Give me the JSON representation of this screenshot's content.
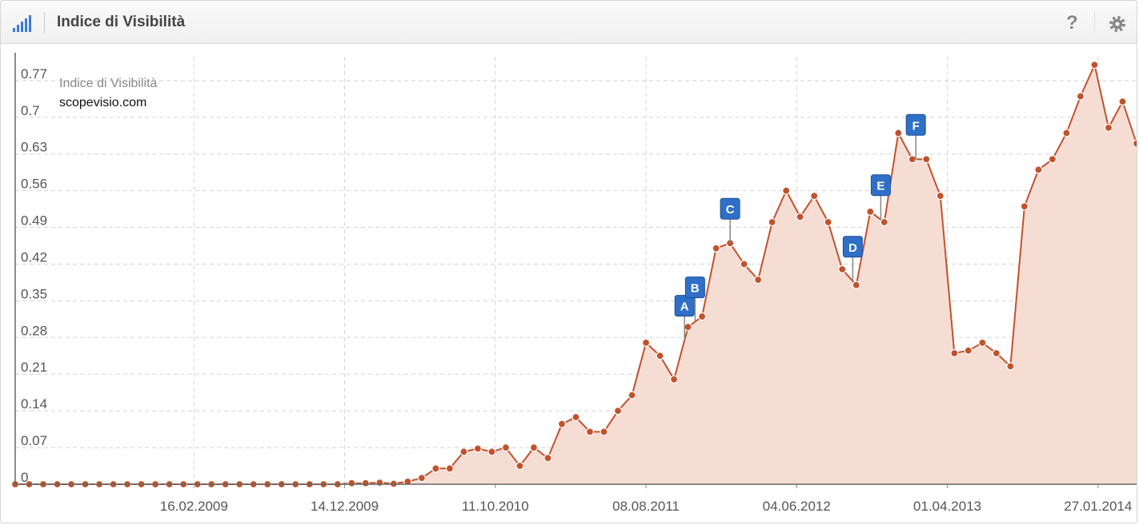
{
  "header": {
    "title": "Indice di Visibilità",
    "help": "?"
  },
  "chart_data": {
    "type": "area",
    "y_label": "Indice di Visibilità",
    "x": [
      "25.02.2008",
      "24.03.2008",
      "21.04.2008",
      "19.05.2008",
      "16.06.2008",
      "14.07.2008",
      "11.08.2008",
      "08.09.2008",
      "06.10.2008",
      "03.11.2008",
      "01.12.2008",
      "29.12.2008",
      "26.01.2009",
      "23.02.2009",
      "23.03.2009",
      "20.04.2009",
      "18.05.2009",
      "15.06.2009",
      "13.07.2009",
      "10.08.2009",
      "07.09.2009",
      "05.10.2009",
      "02.11.2009",
      "30.11.2009",
      "28.12.2009",
      "25.01.2010",
      "22.02.2010",
      "22.03.2010",
      "19.04.2010",
      "17.05.2010",
      "14.06.2010",
      "12.07.2010",
      "09.08.2010",
      "06.09.2010",
      "04.10.2010",
      "01.11.2010",
      "29.11.2010",
      "27.12.2010",
      "24.01.2011",
      "21.02.2011",
      "21.03.2011",
      "18.04.2011",
      "16.05.2011",
      "13.06.2011",
      "11.07.2011",
      "08.08.2011",
      "05.09.2011",
      "03.10.2011",
      "31.10.2011",
      "28.11.2011",
      "26.12.2011",
      "23.01.2012",
      "20.02.2012",
      "19.03.2012",
      "16.04.2012",
      "14.05.2012",
      "11.06.2012",
      "09.07.2012",
      "06.08.2012",
      "03.09.2012",
      "01.10.2012",
      "29.10.2012",
      "26.11.2012",
      "24.12.2012",
      "21.01.2013",
      "18.02.2013",
      "18.03.2013",
      "15.04.2013",
      "13.05.2013",
      "10.06.2013",
      "08.07.2013",
      "05.08.2013",
      "02.09.2013",
      "30.09.2013",
      "28.10.2013",
      "25.11.2013",
      "23.12.2013",
      "20.01.2014",
      "17.02.2014",
      "17.03.2014",
      "14.04.2014"
    ],
    "series": [
      {
        "name": "scopevisio.com",
        "color": "#c0532d",
        "fill": "#f5ddd4",
        "values": [
          0,
          0,
          0,
          0,
          0,
          0,
          0,
          0,
          0,
          0,
          0,
          0,
          0,
          0,
          0,
          0,
          0,
          0,
          0,
          0,
          0,
          0,
          0,
          0,
          0.002,
          0.002,
          0.003,
          0.001,
          0.005,
          0.012,
          0.03,
          0.03,
          0.062,
          0.068,
          0.062,
          0.07,
          0.035,
          0.07,
          0.05,
          0.115,
          0.128,
          0.1,
          0.1,
          0.14,
          0.17,
          0.27,
          0.245,
          0.2,
          0.3,
          0.32,
          0.45,
          0.46,
          0.42,
          0.39,
          0.5,
          0.56,
          0.51,
          0.55,
          0.5,
          0.41,
          0.38,
          0.52,
          0.5,
          0.67,
          0.62,
          0.62,
          0.55,
          0.25,
          0.255,
          0.27,
          0.25,
          0.225,
          0.53,
          0.6,
          0.62,
          0.67,
          0.74,
          0.8,
          0.68,
          0.73,
          0.65
        ]
      }
    ],
    "xlim": [
      "25.02.2008",
      "14.04.2014"
    ],
    "xticks": [
      "16.02.2009",
      "14.12.2009",
      "11.10.2010",
      "08.08.2011",
      "04.06.2012",
      "01.04.2013",
      "27.01.2014"
    ],
    "ylim": [
      0,
      0.8155
    ],
    "yticks": [
      0,
      0.07,
      0.14,
      0.21,
      0.28,
      0.35,
      0.42,
      0.49,
      0.56,
      0.63,
      0.7,
      0.77
    ],
    "grid": true,
    "events": [
      {
        "label": "A",
        "x": "24.10.2011"
      },
      {
        "label": "B",
        "x": "14.11.2011"
      },
      {
        "label": "C",
        "x": "23.01.2012"
      },
      {
        "label": "D",
        "x": "24.09.2012"
      },
      {
        "label": "E",
        "x": "19.11.2012"
      },
      {
        "label": "F",
        "x": "28.01.2013"
      }
    ]
  }
}
